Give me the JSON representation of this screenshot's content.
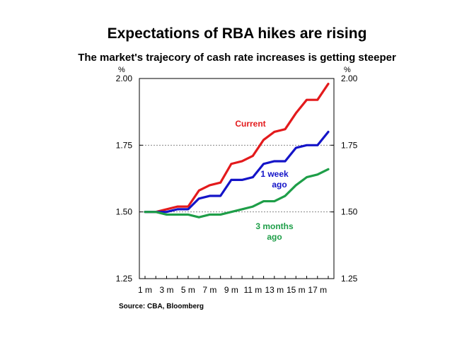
{
  "title": "Expectations of RBA hikes are rising",
  "subtitle": "The market's trajecory of cash rate increases is getting steeper",
  "source": "Source: CBA, Bloomberg",
  "chart_data": {
    "type": "line",
    "x": [
      1,
      2,
      3,
      4,
      5,
      6,
      7,
      8,
      9,
      10,
      11,
      12,
      13,
      14,
      15,
      16,
      17,
      18
    ],
    "x_tick_labels": [
      "1 m",
      "3 m",
      "5 m",
      "7 m",
      "9 m",
      "11 m",
      "13 m",
      "15 m",
      "17 m"
    ],
    "ylim": [
      1.25,
      2.0
    ],
    "y_ticks": [
      "1.25",
      "1.50",
      "1.75",
      "2.00"
    ],
    "y_unit_left": "%",
    "y_unit_right": "%",
    "grid": "horizontal dashed",
    "series": [
      {
        "name": "Current",
        "color": "#e31a1c",
        "values": [
          1.5,
          1.5,
          1.51,
          1.52,
          1.52,
          1.58,
          1.6,
          1.61,
          1.68,
          1.69,
          1.71,
          1.77,
          1.8,
          1.81,
          1.87,
          1.92,
          1.92,
          1.98
        ]
      },
      {
        "name": "1 week ago",
        "color": "#1414c8",
        "values": [
          1.5,
          1.5,
          1.5,
          1.51,
          1.51,
          1.55,
          1.56,
          1.56,
          1.62,
          1.62,
          1.63,
          1.68,
          1.69,
          1.69,
          1.74,
          1.75,
          1.75,
          1.8
        ]
      },
      {
        "name": "3 months ago",
        "color": "#1e9e48",
        "values": [
          1.5,
          1.5,
          1.49,
          1.49,
          1.49,
          1.48,
          1.49,
          1.49,
          1.5,
          1.51,
          1.52,
          1.54,
          1.54,
          1.56,
          1.6,
          1.63,
          1.64,
          1.66
        ]
      }
    ],
    "annotations": [
      {
        "text": "Current",
        "series": "Current"
      },
      {
        "text": "1 week",
        "series": "1 week ago"
      },
      {
        "text": "ago",
        "series": "1 week ago"
      },
      {
        "text": "3 months",
        "series": "3 months ago"
      },
      {
        "text": "ago",
        "series": "3 months ago"
      }
    ]
  }
}
